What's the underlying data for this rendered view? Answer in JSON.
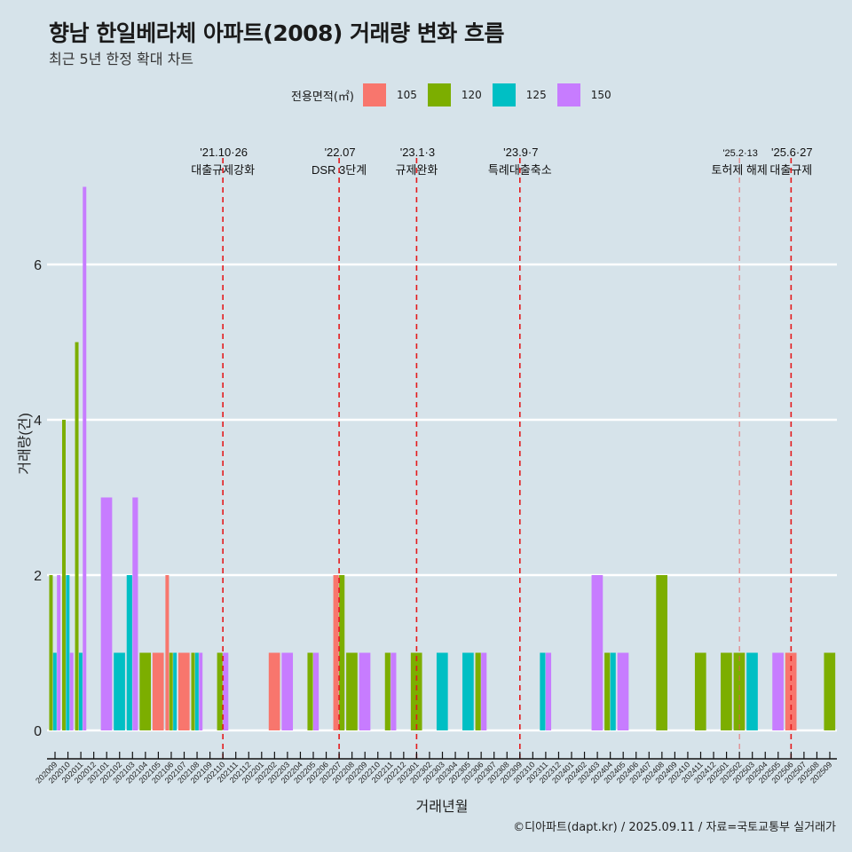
{
  "header": {
    "title": "향남 한일베라체 아파트(2008) 거래량 변화 흐름",
    "subtitle": "최근 5년 한정 확대 차트"
  },
  "legend": {
    "title": "전용면적(㎡)",
    "items": [
      {
        "label": "105",
        "color": "#F8766D"
      },
      {
        "label": "120",
        "color": "#7CAE00"
      },
      {
        "label": "125",
        "color": "#00BFC4"
      },
      {
        "label": "150",
        "color": "#C77CFF"
      }
    ]
  },
  "caption": "©디아파트(dapt.kr) / 2025.09.11 / 자료=국토교통부 실거래가",
  "chart_data": {
    "type": "bar",
    "title": "향남 한일베라체 아파트(2008) 거래량 변화 흐름",
    "subtitle": "최근 5년 한정 확대 차트",
    "xlabel": "거래년월",
    "ylabel": "거래량(건)",
    "ylim": [
      -0.35,
      7.5
    ],
    "yticks": [
      0,
      2,
      4,
      6
    ],
    "grid": true,
    "legend_position": "top",
    "categories": [
      "202009",
      "202010",
      "202011",
      "202012",
      "202101",
      "202102",
      "202103",
      "202104",
      "202105",
      "202106",
      "202107",
      "202108",
      "202109",
      "202110",
      "202111",
      "202112",
      "202201",
      "202202",
      "202203",
      "202204",
      "202205",
      "202206",
      "202207",
      "202208",
      "202209",
      "202210",
      "202211",
      "202212",
      "202301",
      "202302",
      "202303",
      "202304",
      "202305",
      "202306",
      "202307",
      "202308",
      "202309",
      "202310",
      "202311",
      "202312",
      "202401",
      "202402",
      "202403",
      "202404",
      "202405",
      "202406",
      "202407",
      "202408",
      "202409",
      "202410",
      "202411",
      "202412",
      "202501",
      "202502",
      "202503",
      "202504",
      "202505",
      "202506",
      "202507",
      "202508",
      "202509"
    ],
    "series": [
      {
        "name": "105",
        "color": "#F8766D",
        "values": {
          "202105": 1,
          "202106": 2,
          "202107": 1,
          "202202": 1,
          "202207": 2,
          "202506": 1
        }
      },
      {
        "name": "120",
        "color": "#7CAE00",
        "values": {
          "202009": 2,
          "202010": 4,
          "202011": 5,
          "202104": 1,
          "202106": 1,
          "202108": 1,
          "202110": 1,
          "202205": 1,
          "202207": 2,
          "202208": 1,
          "202211": 1,
          "202301": 1,
          "202306": 1,
          "202404": 1,
          "202408": 2,
          "202411": 1,
          "202501": 1,
          "202502": 1,
          "202509": 1
        }
      },
      {
        "name": "125",
        "color": "#00BFC4",
        "values": {
          "202009": 1,
          "202010": 2,
          "202011": 1,
          "202102": 1,
          "202103": 2,
          "202106": 1,
          "202108": 1,
          "202303": 1,
          "202305": 1,
          "202311": 1,
          "202404": 1,
          "202503": 1
        }
      },
      {
        "name": "150",
        "color": "#C77CFF",
        "values": {
          "202009": 2,
          "202010": 1,
          "202011": 7,
          "202101": 3,
          "202103": 3,
          "202108": 1,
          "202110": 1,
          "202203": 1,
          "202205": 1,
          "202209": 1,
          "202211": 1,
          "202306": 1,
          "202311": 1,
          "202403": 2,
          "202405": 1,
          "202505": 1
        }
      }
    ],
    "annotations": [
      {
        "month": "202110",
        "date": "'21.10·26",
        "label": "대출규제강화",
        "style": "strong"
      },
      {
        "month": "202207",
        "date": "'22.07",
        "label": "DSR 3단계",
        "style": "strong"
      },
      {
        "month": "202301",
        "date": "'23.1·3",
        "label": "규제완화",
        "style": "strong"
      },
      {
        "month": "202309",
        "date": "'23.9·7",
        "label": "특례대출축소",
        "style": "strong"
      },
      {
        "month": "202502",
        "date": "'25.2·13",
        "label": "토허제 해제",
        "style": "light"
      },
      {
        "month": "202506",
        "date": "'25.6·27",
        "label": "대출규제",
        "style": "strong"
      }
    ]
  }
}
